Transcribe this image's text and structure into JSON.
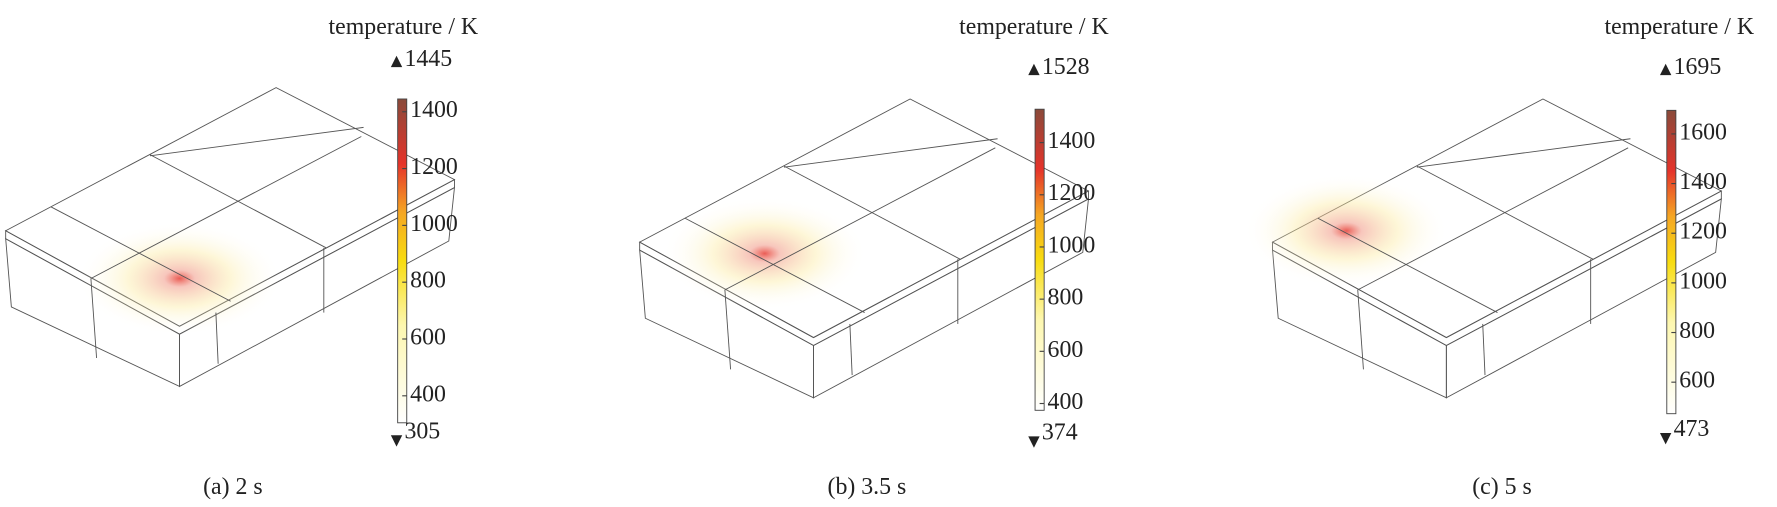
{
  "panels": [
    {
      "caption": "(a) 2 s",
      "colorbar": {
        "title": "temperature / K",
        "max": 1445,
        "min": 305,
        "ticks": [
          400,
          600,
          800,
          1000,
          1200,
          1400
        ]
      }
    },
    {
      "caption": "(b) 3.5 s",
      "colorbar": {
        "title": "temperature / K",
        "max": 1528,
        "min": 374,
        "ticks": [
          400,
          600,
          800,
          1000,
          1200,
          1400
        ]
      }
    },
    {
      "caption": "(c) 5 s",
      "colorbar": {
        "title": "temperature / K",
        "max": 1695,
        "min": 473,
        "ticks": [
          600,
          800,
          1000,
          1200,
          1400,
          1600
        ]
      }
    }
  ]
}
